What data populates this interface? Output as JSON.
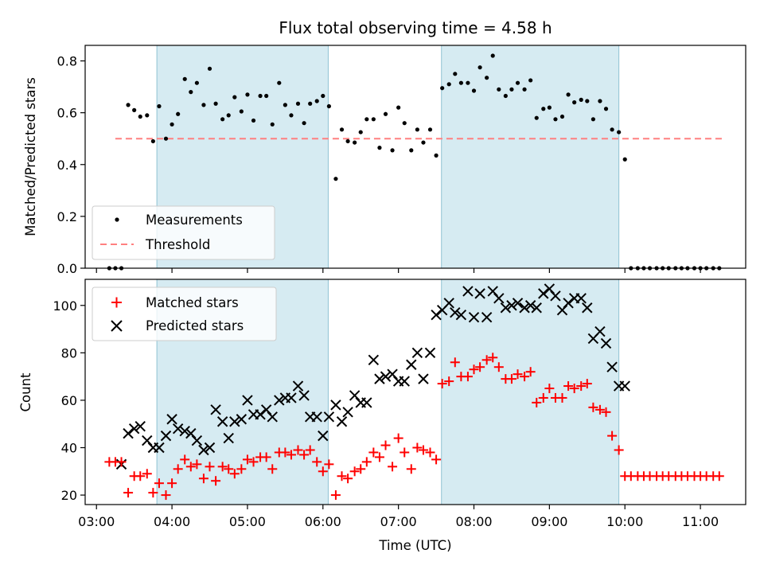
{
  "chart_data": [
    {
      "type": "scatter",
      "title": "Flux total observing time = 4.58 h",
      "xlabel": "",
      "ylabel": "Matched/Predicted stars",
      "ylim": [
        0,
        0.86
      ],
      "yticks": [
        "0.0",
        "0.2",
        "0.4",
        "0.6",
        "0.8"
      ],
      "ytick_values": [
        0,
        0.2,
        0.4,
        0.6,
        0.8
      ],
      "xlim": [
        2.85,
        11.6
      ],
      "shaded_intervals": [
        [
          3.8,
          6.07
        ],
        [
          7.57,
          9.92
        ]
      ],
      "threshold": {
        "name": "Threshold",
        "value": 0.5,
        "x_range": [
          3.25,
          11.3
        ],
        "color": "#ff8080"
      },
      "series": [
        {
          "name": "Measurements",
          "color": "#000000",
          "marker": "dot",
          "x": [
            3.17,
            3.25,
            3.33,
            3.42,
            3.5,
            3.58,
            3.67,
            3.75,
            3.83,
            3.92,
            4.0,
            4.08,
            4.17,
            4.25,
            4.33,
            4.42,
            4.5,
            4.58,
            4.67,
            4.75,
            4.83,
            4.92,
            5.0,
            5.08,
            5.17,
            5.25,
            5.33,
            5.42,
            5.5,
            5.58,
            5.67,
            5.75,
            5.83,
            5.92,
            6.0,
            6.08,
            6.17,
            6.25,
            6.33,
            6.42,
            6.5,
            6.58,
            6.67,
            6.75,
            6.83,
            6.92,
            7.0,
            7.08,
            7.17,
            7.25,
            7.33,
            7.42,
            7.5,
            7.58,
            7.67,
            7.75,
            7.83,
            7.92,
            8.0,
            8.08,
            8.17,
            8.25,
            8.33,
            8.42,
            8.5,
            8.58,
            8.67,
            8.75,
            8.83,
            8.92,
            9.0,
            9.08,
            9.17,
            9.25,
            9.33,
            9.42,
            9.5,
            9.58,
            9.67,
            9.75,
            9.83,
            9.92,
            10.0,
            10.08,
            10.17,
            10.25,
            10.33,
            10.42,
            10.5,
            10.58,
            10.67,
            10.75,
            10.83,
            10.92,
            11.0,
            11.08,
            11.17,
            11.25
          ],
          "values": [
            0,
            0,
            0,
            0.63,
            0.61,
            0.585,
            0.59,
            0.49,
            0.625,
            0.5,
            0.555,
            0.595,
            0.73,
            0.68,
            0.715,
            0.63,
            0.77,
            0.635,
            0.575,
            0.59,
            0.66,
            0.605,
            0.67,
            0.57,
            0.665,
            0.665,
            0.555,
            0.715,
            0.63,
            0.59,
            0.635,
            0.56,
            0.635,
            0.645,
            0.665,
            0.625,
            0.345,
            0.535,
            0.49,
            0.485,
            0.525,
            0.575,
            0.575,
            0.465,
            0.595,
            0.455,
            0.62,
            0.56,
            0.455,
            0.535,
            0.485,
            0.535,
            0.435,
            0.695,
            0.71,
            0.75,
            0.715,
            0.715,
            0.685,
            0.775,
            0.735,
            0.82,
            0.69,
            0.665,
            0.69,
            0.715,
            0.69,
            0.725,
            0.58,
            0.615,
            0.62,
            0.575,
            0.585,
            0.67,
            0.64,
            0.65,
            0.645,
            0.575,
            0.645,
            0.615,
            0.535,
            0.525,
            0.42,
            0,
            0,
            0,
            0,
            0,
            0,
            0,
            0,
            0,
            0,
            0,
            0,
            0,
            0,
            0
          ]
        }
      ],
      "legend": {
        "placement": "lower-left",
        "entries": [
          "Measurements",
          "Threshold"
        ]
      }
    },
    {
      "type": "scatter",
      "title": "",
      "xlabel": "Time (UTC)",
      "ylabel": "Count",
      "ylim": [
        16,
        111
      ],
      "yticks": [
        "20",
        "40",
        "60",
        "80",
        "100"
      ],
      "ytick_values": [
        20,
        40,
        60,
        80,
        100
      ],
      "xlim": [
        2.85,
        11.6
      ],
      "xticks": [
        "03:00",
        "04:00",
        "05:00",
        "06:00",
        "07:00",
        "08:00",
        "09:00",
        "10:00",
        "11:00"
      ],
      "xtick_values": [
        3,
        4,
        5,
        6,
        7,
        8,
        9,
        10,
        11
      ],
      "shaded_intervals": [
        [
          3.8,
          6.07
        ],
        [
          7.57,
          9.92
        ]
      ],
      "series": [
        {
          "name": "Matched stars",
          "color": "#ff0000",
          "marker": "plus",
          "x": [
            3.17,
            3.25,
            3.33,
            3.42,
            3.5,
            3.58,
            3.67,
            3.75,
            3.83,
            3.92,
            4.0,
            4.08,
            4.17,
            4.25,
            4.33,
            4.42,
            4.5,
            4.58,
            4.67,
            4.75,
            4.83,
            4.92,
            5.0,
            5.08,
            5.17,
            5.25,
            5.33,
            5.42,
            5.5,
            5.58,
            5.67,
            5.75,
            5.83,
            5.92,
            6.0,
            6.08,
            6.17,
            6.25,
            6.33,
            6.42,
            6.5,
            6.58,
            6.67,
            6.75,
            6.83,
            6.92,
            7.0,
            7.08,
            7.17,
            7.25,
            7.33,
            7.42,
            7.5,
            7.58,
            7.67,
            7.75,
            7.83,
            7.92,
            8.0,
            8.08,
            8.17,
            8.25,
            8.33,
            8.42,
            8.5,
            8.58,
            8.67,
            8.75,
            8.83,
            8.92,
            9.0,
            9.08,
            9.17,
            9.25,
            9.33,
            9.42,
            9.5,
            9.58,
            9.67,
            9.75,
            9.83,
            9.92,
            10.0,
            10.08,
            10.17,
            10.25,
            10.33,
            10.42,
            10.5,
            10.58,
            10.67,
            10.75,
            10.83,
            10.92,
            11.0,
            11.08,
            11.17,
            11.25
          ],
          "values": [
            34,
            34,
            34,
            21,
            28,
            28,
            29,
            21,
            25,
            20,
            25,
            31,
            35,
            32,
            33,
            27,
            32,
            26,
            32,
            31,
            29,
            31,
            35,
            34,
            36,
            36,
            31,
            38,
            38,
            37,
            39,
            37,
            39,
            34,
            30,
            33,
            20,
            28,
            27,
            30,
            31,
            34,
            38,
            36,
            41,
            32,
            44,
            38,
            31,
            40,
            39,
            38,
            35,
            67,
            68,
            76,
            70,
            70,
            73,
            74,
            77,
            78,
            74,
            69,
            69,
            71,
            70,
            72,
            59,
            61,
            65,
            61,
            61,
            66,
            65,
            66,
            67,
            57,
            56,
            55,
            45,
            39,
            28,
            28,
            28,
            28,
            28,
            28,
            28,
            28,
            28,
            28,
            28,
            28,
            28,
            28,
            28,
            28
          ]
        },
        {
          "name": "Predicted stars",
          "color": "#000000",
          "marker": "x",
          "x": [
            3.33,
            3.42,
            3.5,
            3.58,
            3.67,
            3.75,
            3.83,
            3.92,
            4.0,
            4.08,
            4.17,
            4.25,
            4.33,
            4.42,
            4.5,
            4.58,
            4.67,
            4.75,
            4.83,
            4.92,
            5.0,
            5.08,
            5.17,
            5.25,
            5.33,
            5.42,
            5.5,
            5.58,
            5.67,
            5.75,
            5.83,
            5.92,
            6.0,
            6.08,
            6.17,
            6.25,
            6.33,
            6.42,
            6.5,
            6.58,
            6.67,
            6.75,
            6.83,
            6.92,
            7.0,
            7.08,
            7.17,
            7.25,
            7.33,
            7.42,
            7.5,
            7.58,
            7.67,
            7.75,
            7.83,
            7.92,
            8.0,
            8.08,
            8.17,
            8.25,
            8.33,
            8.42,
            8.5,
            8.58,
            8.67,
            8.75,
            8.83,
            8.92,
            9.0,
            9.08,
            9.17,
            9.25,
            9.33,
            9.42,
            9.5,
            9.58,
            9.67,
            9.75,
            9.83,
            9.92,
            10.0
          ],
          "values": [
            33,
            46,
            48,
            49,
            43,
            40,
            40,
            45,
            52,
            48,
            47,
            46,
            43,
            39,
            40,
            56,
            51,
            44,
            51,
            52,
            60,
            54,
            54,
            56,
            53,
            60,
            61,
            61,
            66,
            62,
            53,
            53,
            45,
            53,
            58,
            51,
            55,
            62,
            59,
            59,
            77,
            69,
            70,
            71,
            68,
            68,
            75,
            80,
            69,
            80,
            96,
            98,
            101,
            97,
            96,
            106,
            95,
            105,
            95,
            106,
            103,
            99,
            100,
            101,
            99,
            100,
            99,
            105,
            107,
            104,
            98,
            101,
            103,
            103,
            99,
            86,
            89,
            84,
            74,
            66,
            66
          ]
        }
      ],
      "legend": {
        "placement": "top-left",
        "entries": [
          "Matched stars",
          "Predicted stars"
        ]
      }
    }
  ]
}
